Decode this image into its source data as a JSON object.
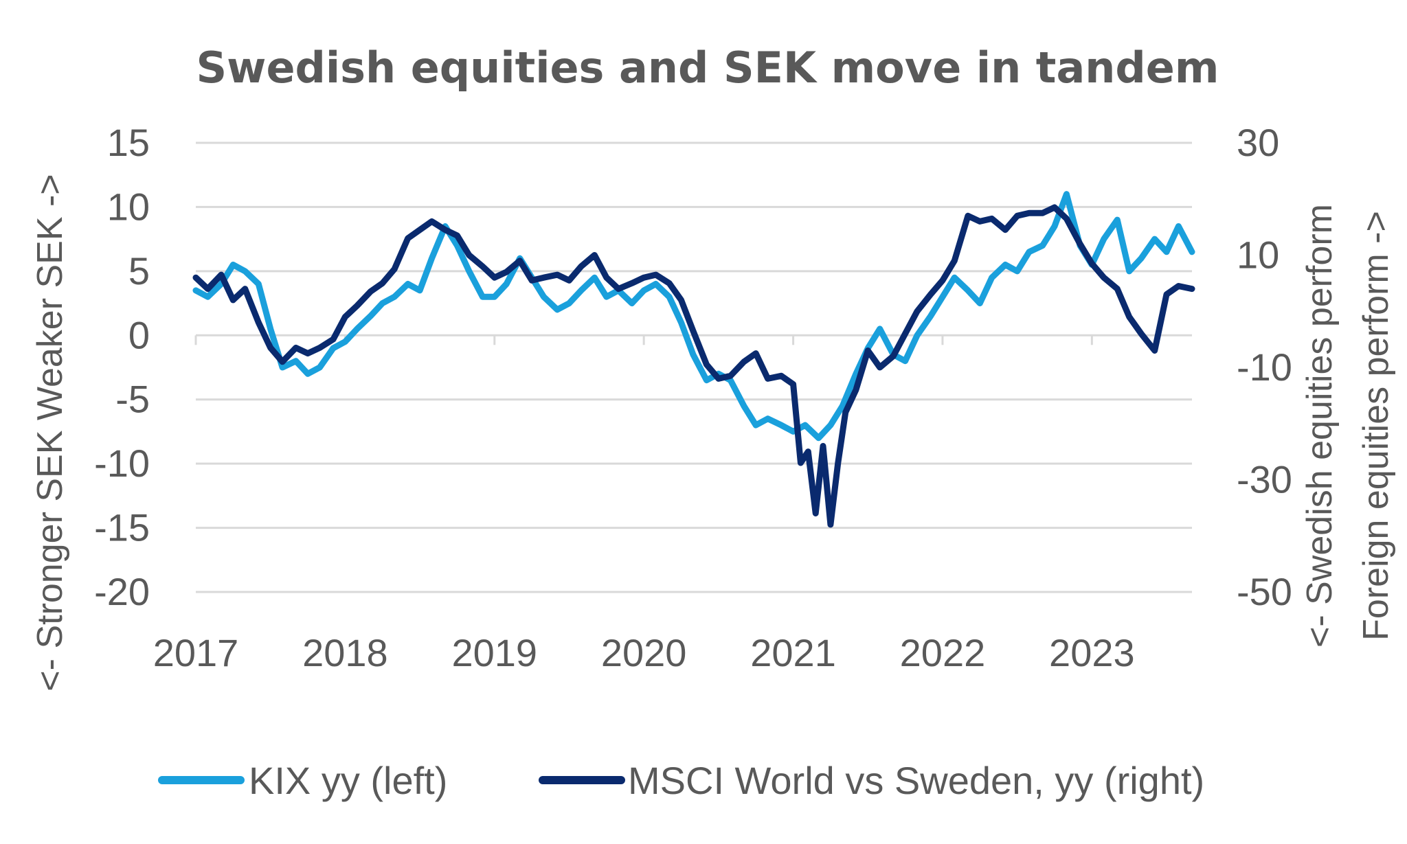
{
  "chart_data": {
    "type": "line",
    "title": "Swedish equities and SEK move in tandem",
    "ylabel_left": "<- Stronger SEK   Weaker SEK ->",
    "ylabel_right_lines": [
      "<- Swedish equities perform",
      "Foreign equities perform ->"
    ],
    "x_ticks": [
      "2017",
      "2018",
      "2019",
      "2020",
      "2021",
      "2022",
      "2023"
    ],
    "xlim": [
      2017.0,
      2023.67
    ],
    "y_left": {
      "ticks": [
        15,
        10,
        5,
        0,
        -5,
        -10,
        -15,
        -20
      ],
      "lim": [
        -20,
        15
      ]
    },
    "y_right": {
      "ticks": [
        30,
        10,
        -10,
        -30,
        -50
      ],
      "lim": [
        -50,
        30
      ]
    },
    "grid": true,
    "legend_position": "bottom",
    "series": [
      {
        "name": "KIX yy (left)",
        "axis": "left",
        "color": "#1aa0dc",
        "x": [
          2017.0,
          2017.08,
          2017.17,
          2017.25,
          2017.33,
          2017.42,
          2017.5,
          2017.58,
          2017.67,
          2017.75,
          2017.83,
          2017.92,
          2018.0,
          2018.08,
          2018.17,
          2018.25,
          2018.33,
          2018.42,
          2018.5,
          2018.58,
          2018.67,
          2018.75,
          2018.83,
          2018.92,
          2019.0,
          2019.08,
          2019.17,
          2019.25,
          2019.33,
          2019.42,
          2019.5,
          2019.58,
          2019.67,
          2019.75,
          2019.83,
          2019.92,
          2020.0,
          2020.08,
          2020.17,
          2020.25,
          2020.33,
          2020.42,
          2020.5,
          2020.58,
          2020.67,
          2020.75,
          2020.83,
          2020.92,
          2021.0,
          2021.08,
          2021.17,
          2021.25,
          2021.33,
          2021.42,
          2021.5,
          2021.58,
          2021.67,
          2021.75,
          2021.83,
          2021.92,
          2022.0,
          2022.08,
          2022.17,
          2022.25,
          2022.33,
          2022.42,
          2022.5,
          2022.58,
          2022.67,
          2022.75,
          2022.83,
          2022.92,
          2023.0,
          2023.08,
          2023.17,
          2023.25,
          2023.33,
          2023.42,
          2023.5,
          2023.58,
          2023.67
        ],
        "y": [
          3.5,
          3.0,
          4.0,
          5.5,
          5.0,
          4.0,
          0.5,
          -2.5,
          -2.0,
          -3.0,
          -2.5,
          -1.0,
          -0.5,
          0.5,
          1.5,
          2.5,
          3.0,
          4.0,
          3.5,
          6.0,
          8.5,
          7.0,
          5.0,
          3.0,
          3.0,
          4.0,
          6.0,
          4.5,
          3.0,
          2.0,
          2.5,
          3.5,
          4.5,
          3.0,
          3.5,
          2.5,
          3.5,
          4.0,
          3.0,
          1.0,
          -1.5,
          -3.5,
          -3.0,
          -3.5,
          -5.5,
          -7.0,
          -6.5,
          -7.0,
          -7.5,
          -7.0,
          -8.0,
          -7.0,
          -5.5,
          -3.0,
          -1.0,
          0.5,
          -1.5,
          -2.0,
          0.0,
          1.5,
          3.0,
          4.5,
          3.5,
          2.5,
          4.5,
          5.5,
          5.0,
          6.5,
          7.0,
          8.5,
          11.0,
          7.0,
          5.5,
          7.5,
          9.0,
          5.0,
          6.0,
          7.5,
          6.5,
          8.5,
          6.5
        ]
      },
      {
        "name": "MSCI World vs Sweden, yy (right)",
        "axis": "right",
        "color": "#0a2a6e",
        "x": [
          2017.0,
          2017.08,
          2017.17,
          2017.25,
          2017.33,
          2017.42,
          2017.5,
          2017.58,
          2017.67,
          2017.75,
          2017.83,
          2017.92,
          2018.0,
          2018.08,
          2018.17,
          2018.25,
          2018.33,
          2018.42,
          2018.5,
          2018.58,
          2018.67,
          2018.75,
          2018.83,
          2018.92,
          2019.0,
          2019.08,
          2019.17,
          2019.25,
          2019.33,
          2019.42,
          2019.5,
          2019.58,
          2019.67,
          2019.75,
          2019.83,
          2019.92,
          2020.0,
          2020.08,
          2020.17,
          2020.25,
          2020.33,
          2020.42,
          2020.5,
          2020.58,
          2020.67,
          2020.75,
          2020.83,
          2020.92,
          2021.0,
          2021.05,
          2021.1,
          2021.15,
          2021.2,
          2021.25,
          2021.3,
          2021.35,
          2021.42,
          2021.5,
          2021.58,
          2021.67,
          2021.75,
          2021.83,
          2021.92,
          2022.0,
          2022.08,
          2022.17,
          2022.25,
          2022.33,
          2022.42,
          2022.5,
          2022.58,
          2022.67,
          2022.75,
          2022.83,
          2022.92,
          2023.0,
          2023.08,
          2023.17,
          2023.25,
          2023.33,
          2023.42,
          2023.5,
          2023.58,
          2023.67
        ],
        "y": [
          6.0,
          4.0,
          6.5,
          2.0,
          4.0,
          -2.0,
          -6.5,
          -9.0,
          -6.5,
          -7.5,
          -6.5,
          -5.0,
          -1.0,
          1.0,
          3.5,
          5.0,
          7.5,
          13.0,
          14.5,
          16.0,
          14.5,
          13.5,
          10.0,
          8.0,
          6.0,
          7.0,
          9.0,
          5.5,
          6.0,
          6.5,
          5.5,
          8.0,
          10.0,
          6.0,
          4.0,
          5.0,
          6.0,
          6.5,
          5.0,
          2.0,
          -3.5,
          -9.5,
          -12.0,
          -11.5,
          -9.0,
          -7.5,
          -12.0,
          -11.5,
          -13.0,
          -27.0,
          -25.0,
          -36.0,
          -24.0,
          -38.0,
          -27.0,
          -18.0,
          -14.0,
          -7.0,
          -10.0,
          -8.0,
          -4.0,
          0.0,
          3.0,
          5.5,
          9.0,
          17.0,
          16.0,
          16.5,
          14.5,
          17.0,
          17.5,
          17.5,
          18.5,
          16.5,
          12.0,
          8.5,
          6.0,
          4.0,
          -1.0,
          -4.0,
          -7.0,
          3.0,
          4.5,
          4.0
        ]
      }
    ]
  }
}
